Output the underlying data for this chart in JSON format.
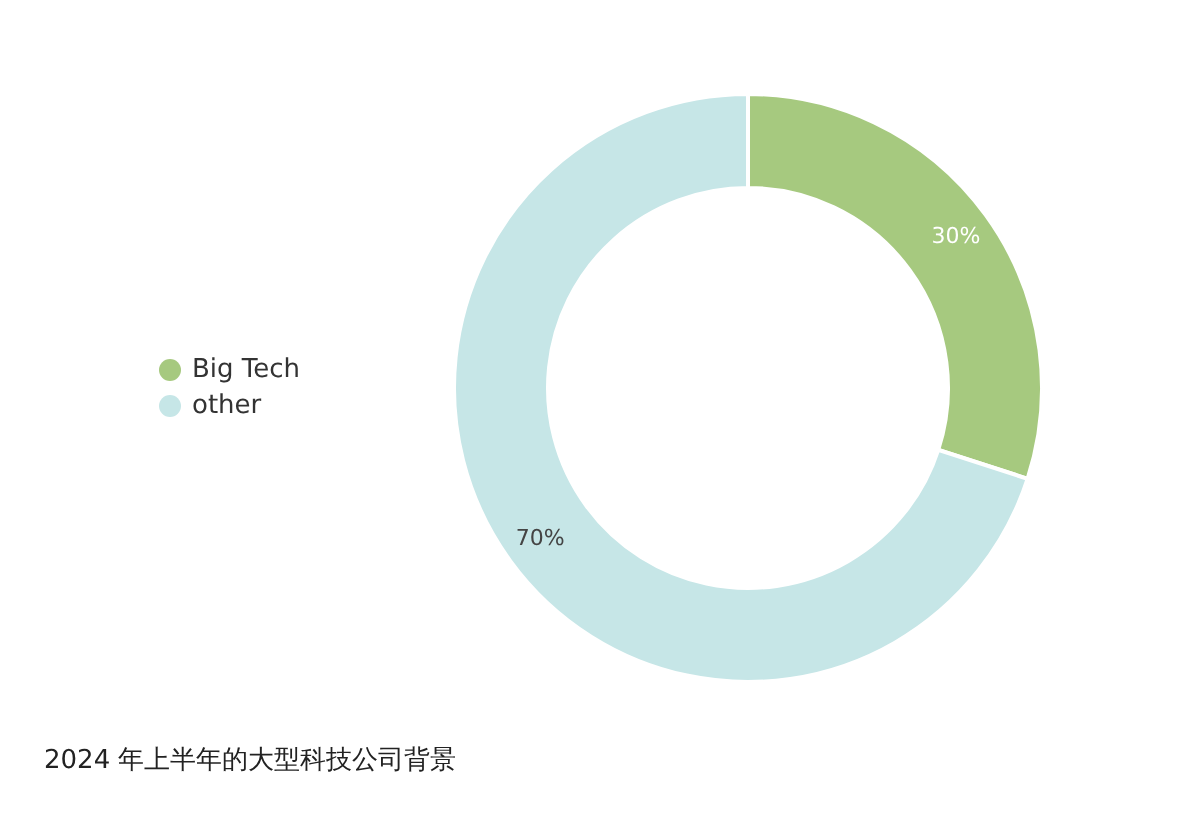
{
  "chart_data": {
    "type": "donut",
    "title": "2024 年上半年的大型科技公司背景",
    "categories": [
      "Big Tech",
      "other"
    ],
    "values": [
      30,
      70
    ],
    "colors": [
      "#a6c97f",
      "#c6e6e7"
    ],
    "value_labels": [
      "30%",
      "70%"
    ],
    "legend": "left"
  }
}
